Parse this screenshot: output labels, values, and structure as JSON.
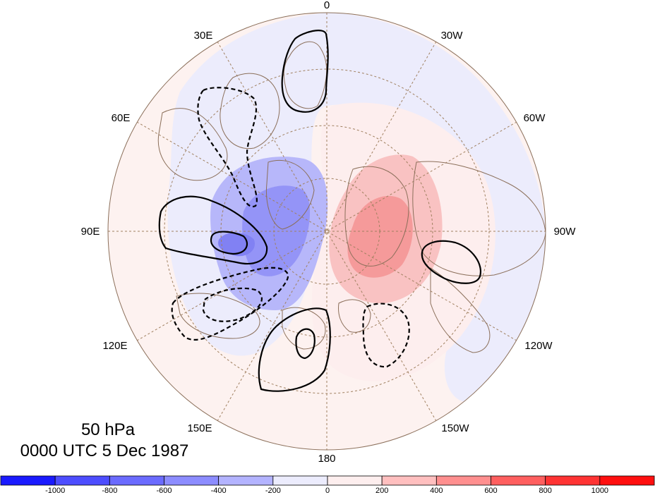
{
  "plot": {
    "level": "50 hPa",
    "datetime": "0000 UTC 5 Dec 1987"
  },
  "lon_labels": [
    "0",
    "30W",
    "60W",
    "90W",
    "120W",
    "150W",
    "180",
    "150E",
    "120E",
    "90E",
    "60E",
    "30E"
  ],
  "colorbar": {
    "colors": [
      "#1a1aff",
      "#4d4dff",
      "#6b6bff",
      "#8c8cff",
      "#b3b3ff",
      "#ececfd",
      "#fdeeee",
      "#ffbfbf",
      "#ff8f8f",
      "#ff5f5f",
      "#ff3333",
      "#ff0f0f"
    ],
    "labels": [
      "-1000",
      "-800",
      "-600",
      "-400",
      "-200",
      "0",
      "200",
      "400",
      "600",
      "800",
      "1000"
    ]
  },
  "colors": {
    "land_outline": "#8b6f5a",
    "graticule": "#a08060",
    "contour": "#000000",
    "neg_light": "#ededfd",
    "pos_light": "#fdefef"
  }
}
